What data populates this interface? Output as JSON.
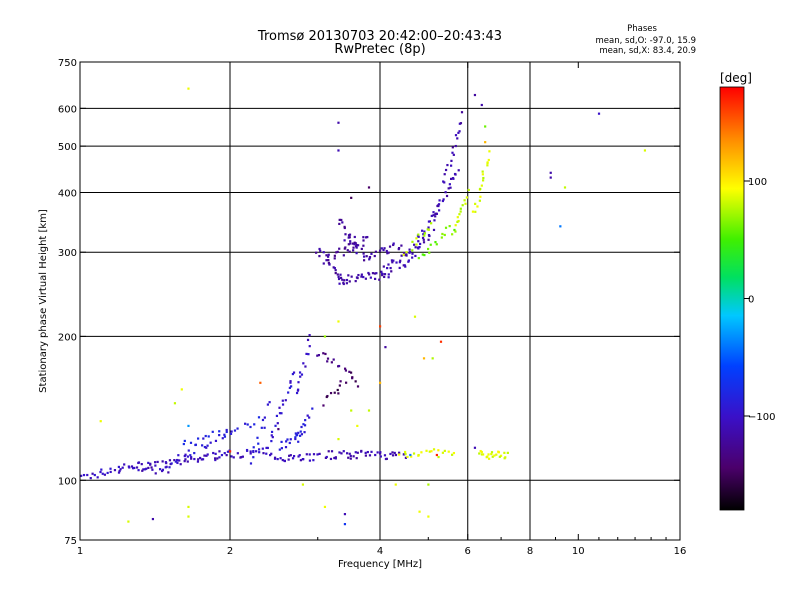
{
  "chart_data": {
    "type": "scatter",
    "title": "Tromsø 20130703 20:42:00–20:43:43",
    "subtitle": "RwPretec (8p)",
    "xlabel": "Frequency [MHz]",
    "ylabel": "Stationary phase Virtual Height [km]",
    "x_scale": "log",
    "y_scale": "log",
    "xlim": [
      1,
      16
    ],
    "ylim": [
      75,
      750
    ],
    "xticks": [
      1,
      2,
      4,
      6,
      8,
      10,
      16
    ],
    "xtick_labels": [
      "1",
      "2",
      "4",
      "6",
      "8",
      "10",
      "16"
    ],
    "x_gridlines": [
      2,
      4,
      6,
      8
    ],
    "yticks": [
      75,
      100,
      200,
      300,
      400,
      500,
      600,
      750
    ],
    "ytick_labels": [
      "75",
      "100",
      "200",
      "300",
      "400",
      "500",
      "600",
      "750"
    ],
    "y_gridlines": [
      100,
      200,
      300,
      400,
      500,
      600
    ],
    "grid": true,
    "phases": {
      "title": "Phases",
      "line_o": "mean, sd,O: -97.0, 15.9",
      "line_x": "mean, sd,X: 83.4, 20.9"
    },
    "colorbar": {
      "label": "[deg]",
      "range": [
        -180,
        180
      ],
      "ticks": [
        100,
        0,
        -100
      ],
      "tick_labels": [
        "100",
        "0",
        "−100"
      ],
      "colormap": "rainbow (black-purple-blue-cyan-green-yellow-orange-red)"
    },
    "series": [
      {
        "traces": [
          {
            "x": [
              1.0,
              1.2
            ],
            "y": [
              101,
              106
            ],
            "phase": -103,
            "n": 18
          },
          {
            "x": [
              1.2,
              1.5
            ],
            "y": [
              106,
              108
            ],
            "phase": -105,
            "n": 26
          },
          {
            "x": [
              1.5,
              1.9
            ],
            "y": [
              108,
              113
            ],
            "phase": -108,
            "n": 28
          },
          {
            "x": [
              1.9,
              2.4
            ],
            "y": [
              113,
              115
            ],
            "phase": -104,
            "n": 26
          },
          {
            "x": [
              2.4,
              3.0
            ],
            "y": [
              112,
              112
            ],
            "phase": -106,
            "n": 26
          },
          {
            "x": [
              3.1,
              4.5
            ],
            "y": [
              113,
              113
            ],
            "phase": -112,
            "n": 45
          },
          {
            "x": [
              4.4,
              5.6
            ],
            "y": [
              114,
              114
            ],
            "phase": 90,
            "n": 20
          },
          {
            "x": [
              6.3,
              7.2
            ],
            "y": [
              113,
              113
            ],
            "phase": 88,
            "n": 22
          },
          {
            "x": [
              1.3,
              1.5
            ],
            "y": [
              107,
              103
            ],
            "phase": -110,
            "n": 10
          },
          {
            "x": [
              1.5,
              2.0
            ],
            "y": [
              108,
              127
            ],
            "phase": -92,
            "n": 22
          },
          {
            "x": [
              1.6,
              2.3
            ],
            "y": [
              118,
              133
            ],
            "phase": -85,
            "n": 20
          },
          {
            "x": [
              2.2,
              2.4
            ],
            "y": [
              110,
              145
            ],
            "phase": -88,
            "n": 12
          },
          {
            "x": [
              2.4,
              2.7
            ],
            "y": [
              120,
              170
            ],
            "phase": -95,
            "n": 20
          },
          {
            "x": [
              2.7,
              2.9
            ],
            "y": [
              150,
              200
            ],
            "phase": -100,
            "n": 14
          },
          {
            "x": [
              2.7,
              2.9
            ],
            "y": [
              120,
              140
            ],
            "phase": -90,
            "n": 12
          },
          {
            "x": [
              2.5,
              2.8
            ],
            "y": [
              118,
              125
            ],
            "phase": -88,
            "n": 14
          },
          {
            "x": [
              3.0,
              3.3
            ],
            "y": [
              185,
              175
            ],
            "phase": -130,
            "n": 10
          },
          {
            "x": [
              3.1,
              3.4
            ],
            "y": [
              145,
              160
            ],
            "phase": -150,
            "n": 10
          },
          {
            "x": [
              3.4,
              3.6
            ],
            "y": [
              170,
              160
            ],
            "phase": -145,
            "n": 8
          },
          {
            "x": [
              3.0,
              3.4
            ],
            "y": [
              305,
              260
            ],
            "phase": -120,
            "n": 20
          },
          {
            "x": [
              3.3,
              4.2
            ],
            "y": [
              262,
              270
            ],
            "phase": -115,
            "n": 32
          },
          {
            "x": [
              4.0,
              4.6
            ],
            "y": [
              275,
              300
            ],
            "phase": -112,
            "n": 18
          },
          {
            "x": [
              3.1,
              3.8
            ],
            "y": [
              290,
              320
            ],
            "phase": -125,
            "n": 24
          },
          {
            "x": [
              3.4,
              3.8
            ],
            "y": [
              320,
              290
            ],
            "phase": -118,
            "n": 14
          },
          {
            "x": [
              3.3,
              3.6
            ],
            "y": [
              355,
              310
            ],
            "phase": -120,
            "n": 14
          },
          {
            "x": [
              3.8,
              4.4
            ],
            "y": [
              295,
              310
            ],
            "phase": -115,
            "n": 18
          },
          {
            "x": [
              4.4,
              5.1
            ],
            "y": [
              280,
              330
            ],
            "phase": -112,
            "n": 20
          },
          {
            "x": [
              4.6,
              5.3
            ],
            "y": [
              300,
              380
            ],
            "phase": -110,
            "n": 20
          },
          {
            "x": [
              5.1,
              5.7
            ],
            "y": [
              350,
              450
            ],
            "phase": -112,
            "n": 20
          },
          {
            "x": [
              5.4,
              5.8
            ],
            "y": [
              420,
              580
            ],
            "phase": -115,
            "n": 18
          },
          {
            "x": [
              4.8,
              5.6
            ],
            "y": [
              290,
              340
            ],
            "phase": 60,
            "n": 14
          },
          {
            "x": [
              5.6,
              6.0
            ],
            "y": [
              330,
              400
            ],
            "phase": 80,
            "n": 14
          },
          {
            "x": [
              6.2,
              6.6
            ],
            "y": [
              360,
              480
            ],
            "phase": 85,
            "n": 18
          },
          {
            "x": [
              4.5,
              5.1
            ],
            "y": [
              300,
              340
            ],
            "phase": 80,
            "n": 12
          }
        ],
        "points": [
          {
            "x": 1.65,
            "y": 660,
            "phase": 90
          },
          {
            "x": 3.3,
            "y": 560,
            "phase": -115
          },
          {
            "x": 3.3,
            "y": 490,
            "phase": -110
          },
          {
            "x": 6.2,
            "y": 640,
            "phase": -120
          },
          {
            "x": 6.4,
            "y": 610,
            "phase": -115
          },
          {
            "x": 6.5,
            "y": 550,
            "phase": 60
          },
          {
            "x": 6.5,
            "y": 510,
            "phase": 120
          },
          {
            "x": 11.0,
            "y": 585,
            "phase": -100
          },
          {
            "x": 13.6,
            "y": 490,
            "phase": 85
          },
          {
            "x": 8.8,
            "y": 440,
            "phase": -115
          },
          {
            "x": 8.8,
            "y": 430,
            "phase": -115
          },
          {
            "x": 9.4,
            "y": 410,
            "phase": 80
          },
          {
            "x": 9.2,
            "y": 340,
            "phase": -40
          },
          {
            "x": 3.8,
            "y": 410,
            "phase": -145
          },
          {
            "x": 3.5,
            "y": 390,
            "phase": -150
          },
          {
            "x": 4.0,
            "y": 210,
            "phase": 160
          },
          {
            "x": 3.3,
            "y": 215,
            "phase": 90
          },
          {
            "x": 3.1,
            "y": 200,
            "phase": 70
          },
          {
            "x": 4.7,
            "y": 220,
            "phase": 85
          },
          {
            "x": 5.3,
            "y": 195,
            "phase": 165
          },
          {
            "x": 4.9,
            "y": 180,
            "phase": 120
          },
          {
            "x": 5.1,
            "y": 180,
            "phase": 75
          },
          {
            "x": 4.1,
            "y": 190,
            "phase": -120
          },
          {
            "x": 4.0,
            "y": 160,
            "phase": 120
          },
          {
            "x": 3.5,
            "y": 140,
            "phase": 80
          },
          {
            "x": 3.6,
            "y": 130,
            "phase": 90
          },
          {
            "x": 3.8,
            "y": 140,
            "phase": 80
          },
          {
            "x": 3.3,
            "y": 122,
            "phase": 85
          },
          {
            "x": 2.3,
            "y": 160,
            "phase": 150
          },
          {
            "x": 1.6,
            "y": 155,
            "phase": 90
          },
          {
            "x": 1.55,
            "y": 145,
            "phase": 80
          },
          {
            "x": 1.1,
            "y": 133,
            "phase": 90
          },
          {
            "x": 1.65,
            "y": 130,
            "phase": -30
          },
          {
            "x": 2.0,
            "y": 115,
            "phase": 170
          },
          {
            "x": 2.5,
            "y": 128,
            "phase": -140
          },
          {
            "x": 2.8,
            "y": 98,
            "phase": 85
          },
          {
            "x": 1.65,
            "y": 88,
            "phase": 85
          },
          {
            "x": 1.65,
            "y": 84,
            "phase": 85
          },
          {
            "x": 1.25,
            "y": 82,
            "phase": 85
          },
          {
            "x": 1.4,
            "y": 83,
            "phase": -115
          },
          {
            "x": 3.4,
            "y": 85,
            "phase": -110
          },
          {
            "x": 3.4,
            "y": 81,
            "phase": -70
          },
          {
            "x": 3.1,
            "y": 88,
            "phase": 90
          },
          {
            "x": 4.8,
            "y": 86,
            "phase": 90
          },
          {
            "x": 5.0,
            "y": 84,
            "phase": 90
          },
          {
            "x": 5.2,
            "y": 113,
            "phase": 170
          },
          {
            "x": 4.6,
            "y": 113,
            "phase": -40
          },
          {
            "x": 6.2,
            "y": 117,
            "phase": -110
          },
          {
            "x": 4.3,
            "y": 98,
            "phase": 90
          },
          {
            "x": 5.0,
            "y": 98,
            "phase": 75
          }
        ]
      }
    ]
  }
}
